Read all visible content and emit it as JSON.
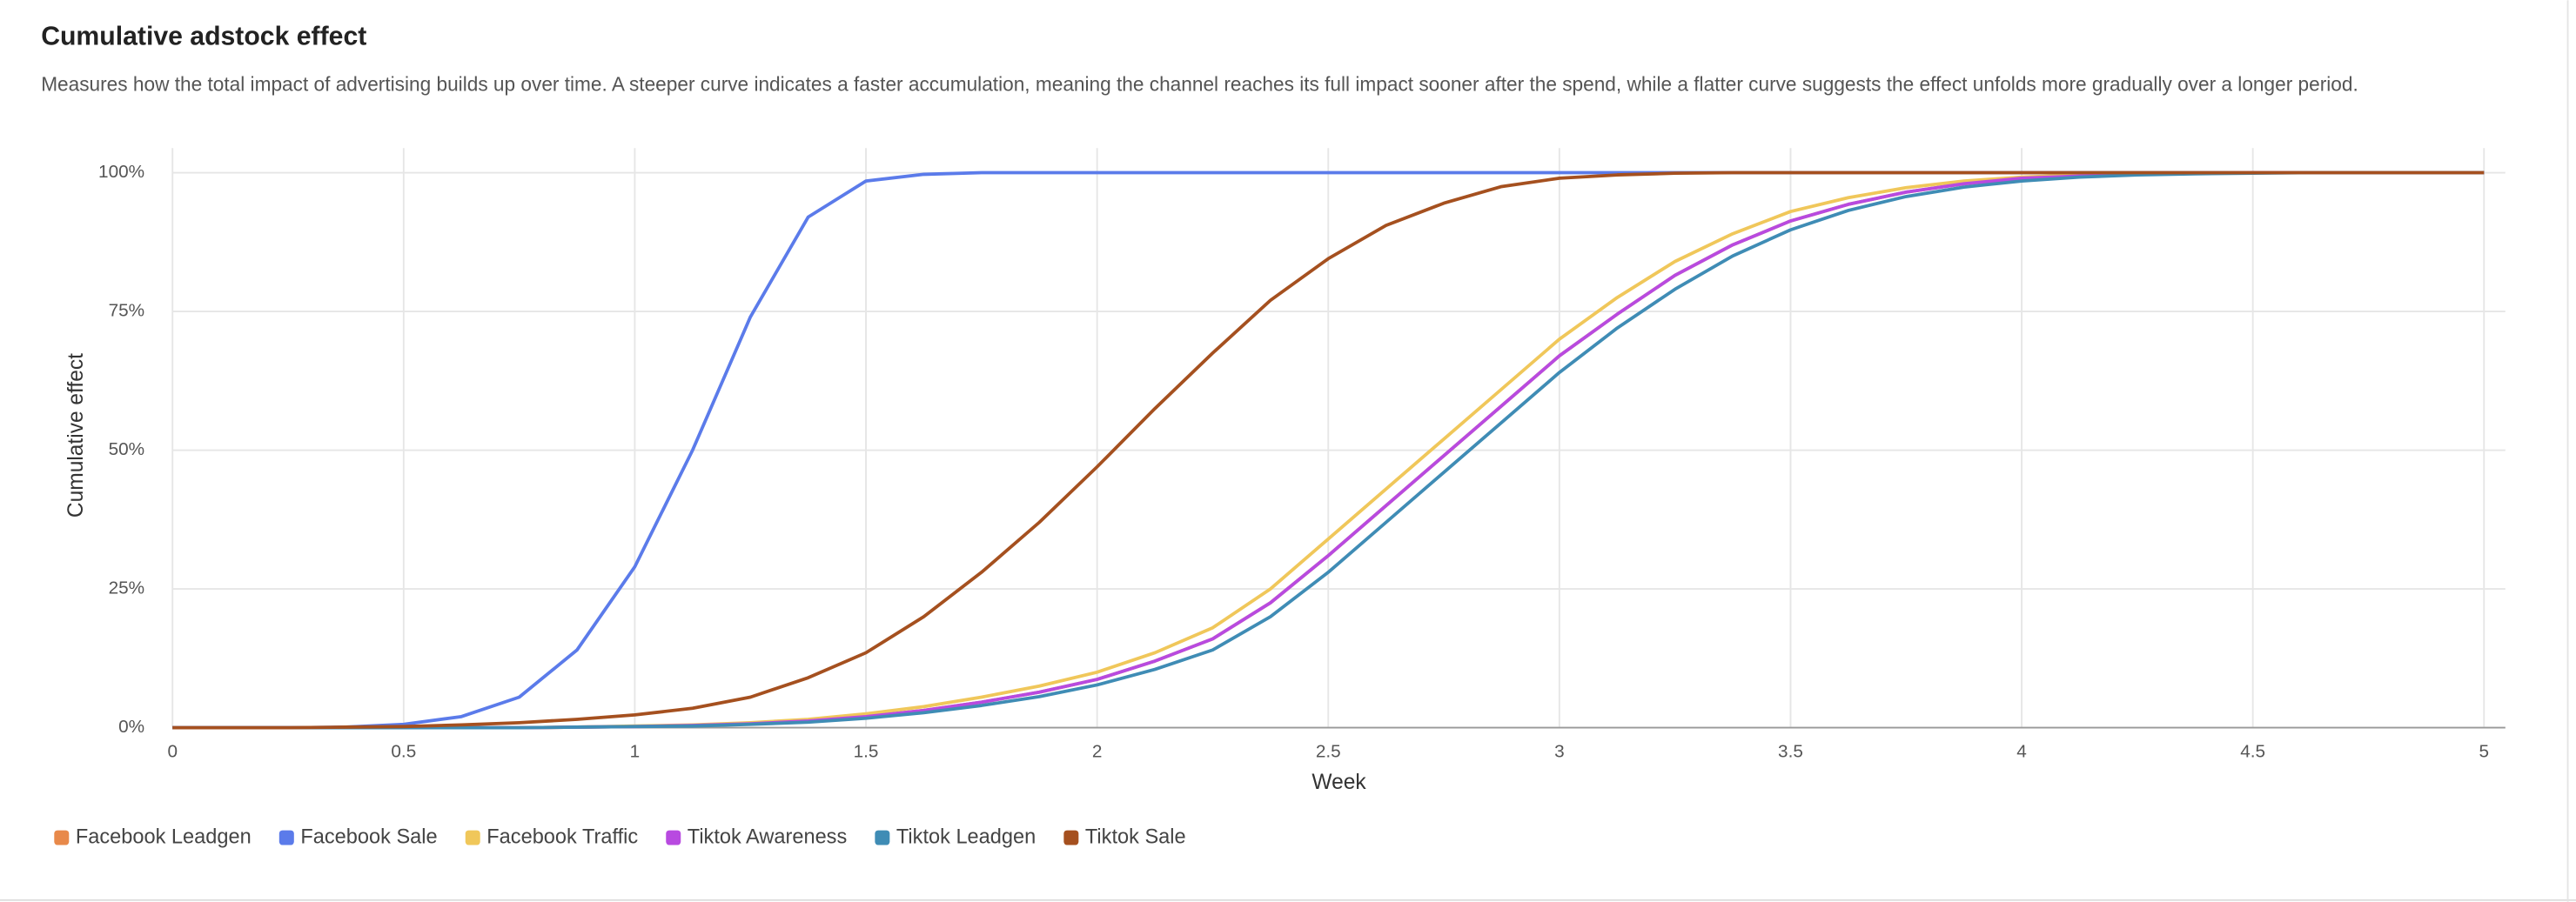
{
  "chart_data": {
    "type": "line",
    "title": "Cumulative adstock effect",
    "subtitle": "Measures how the total impact of advertising builds up over time. A steeper curve indicates a faster accumulation, meaning the channel reaches its full impact sooner after the spend, while a flatter curve suggests the effect unfolds more gradually over a longer period.",
    "x_label": "Week",
    "y_label": "Cumulative effect",
    "x": [
      0,
      0.125,
      0.25,
      0.375,
      0.5,
      0.625,
      0.75,
      0.875,
      1,
      1.125,
      1.25,
      1.375,
      1.5,
      1.625,
      1.75,
      1.875,
      2,
      2.125,
      2.25,
      2.375,
      2.5,
      2.625,
      2.75,
      2.875,
      3,
      3.125,
      3.25,
      3.375,
      3.5,
      3.625,
      3.75,
      3.875,
      4,
      4.125,
      4.25,
      4.375,
      4.5,
      4.625,
      4.75,
      4.875,
      5
    ],
    "xlim": [
      0,
      5
    ],
    "xticks": [
      0,
      0.5,
      1,
      1.5,
      2,
      2.5,
      3,
      3.5,
      4,
      4.5,
      5
    ],
    "ylim": [
      0,
      100
    ],
    "yticks": [
      {
        "value": 0,
        "label": "0%"
      },
      {
        "value": 25,
        "label": "25%"
      },
      {
        "value": 50,
        "label": "50%"
      },
      {
        "value": 75,
        "label": "75%"
      },
      {
        "value": 100,
        "label": "100%"
      }
    ],
    "grid": true,
    "legend": "bottom-left",
    "series": [
      {
        "name": "Facebook Leadgen",
        "color": "#e8894a",
        "values": [
          0,
          0,
          0,
          0,
          0,
          0,
          0,
          0.1,
          0.2,
          0.4,
          0.7,
          1.2,
          2,
          3.1,
          4.6,
          6.4,
          8.7,
          12,
          16,
          22.5,
          31,
          40,
          49,
          58,
          67,
          74.5,
          81.5,
          87,
          91.3,
          94.3,
          96.5,
          98,
          99,
          99.4,
          99.7,
          99.9,
          100,
          100,
          100,
          100,
          100
        ]
      },
      {
        "name": "Facebook Sale",
        "color": "#5b7bea",
        "values": [
          0,
          0,
          0,
          0.1,
          0.6,
          2,
          5.5,
          14,
          29,
          50,
          74,
          92,
          98.5,
          99.7,
          100,
          100,
          100,
          100,
          100,
          100,
          100,
          100,
          100,
          100,
          100,
          100,
          100,
          100,
          100,
          100,
          100,
          100,
          100,
          100,
          100,
          100,
          100,
          100,
          100,
          100,
          100
        ]
      },
      {
        "name": "Facebook Traffic",
        "color": "#f0c75a",
        "values": [
          0,
          0,
          0,
          0,
          0,
          0,
          0,
          0.1,
          0.3,
          0.5,
          0.9,
          1.5,
          2.5,
          3.8,
          5.5,
          7.5,
          10,
          13.5,
          18,
          25,
          34,
          43,
          52,
          61,
          70,
          77.5,
          84,
          89,
          93,
          95.5,
          97.3,
          98.5,
          99.2,
          99.6,
          99.8,
          99.9,
          100,
          100,
          100,
          100,
          100
        ]
      },
      {
        "name": "Tiktok Awareness",
        "color": "#b84ae0",
        "values": [
          0,
          0,
          0,
          0,
          0,
          0,
          0,
          0.1,
          0.2,
          0.4,
          0.7,
          1.2,
          2,
          3.1,
          4.6,
          6.4,
          8.7,
          12,
          16,
          22.5,
          31,
          40,
          49,
          58,
          67,
          74.5,
          81.5,
          87,
          91.3,
          94.3,
          96.5,
          98,
          99,
          99.4,
          99.7,
          99.9,
          100,
          100,
          100,
          100,
          100
        ]
      },
      {
        "name": "Tiktok Leadgen",
        "color": "#3f8cb5",
        "values": [
          0,
          0,
          0,
          0,
          0,
          0,
          0,
          0.1,
          0.2,
          0.3,
          0.6,
          1,
          1.7,
          2.7,
          4,
          5.6,
          7.7,
          10.5,
          14,
          20,
          28,
          37,
          46,
          55,
          64,
          72,
          79,
          85,
          89.7,
          93.2,
          95.7,
          97.4,
          98.5,
          99.2,
          99.6,
          99.8,
          99.9,
          100,
          100,
          100,
          100
        ]
      },
      {
        "name": "Tiktok Sale",
        "color": "#a5501f",
        "values": [
          0,
          0,
          0,
          0.1,
          0.2,
          0.5,
          0.9,
          1.5,
          2.3,
          3.5,
          5.5,
          9,
          13.5,
          20,
          28,
          37,
          47,
          57.5,
          67.5,
          77,
          84.5,
          90.5,
          94.5,
          97.5,
          99,
          99.6,
          99.9,
          100,
          100,
          100,
          100,
          100,
          100,
          100,
          100,
          100,
          100,
          100,
          100,
          100,
          100
        ]
      }
    ]
  }
}
